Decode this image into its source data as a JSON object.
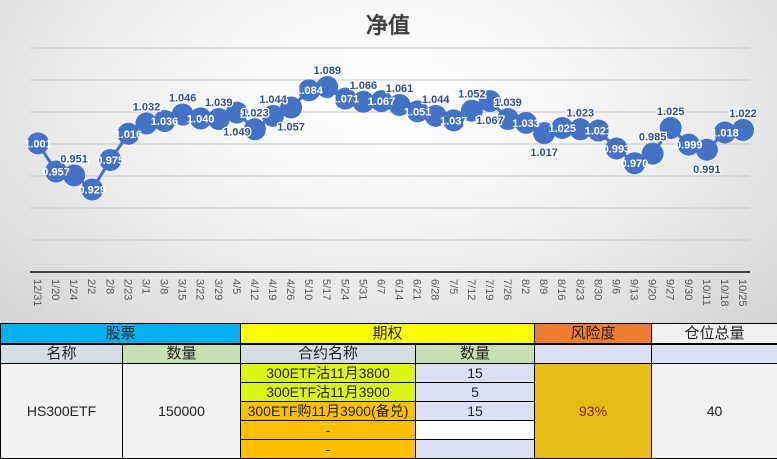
{
  "chart_data": {
    "type": "line",
    "title": "净值",
    "xlabel": "",
    "ylabel": "",
    "ylim": [
      0.8,
      1.15
    ],
    "grid": true,
    "legend": "none",
    "categories": [
      "12/31",
      "1/20",
      "1/24",
      "2/2",
      "2/8",
      "2/23",
      "3/1",
      "3/8",
      "3/15",
      "3/22",
      "3/29",
      "4/5",
      "4/12",
      "4/19",
      "4/26",
      "5/10",
      "5/17",
      "5/24",
      "5/31",
      "6/7",
      "6/14",
      "6/21",
      "6/28",
      "7/5",
      "7/12",
      "7/19",
      "7/26",
      "8/2",
      "8/9",
      "8/16",
      "8/23",
      "8/30",
      "9/6",
      "9/13",
      "9/20",
      "9/27",
      "9/30",
      "10/11",
      "10/18",
      "10/25"
    ],
    "values": [
      1.001,
      0.957,
      0.951,
      0.929,
      0.975,
      1.016,
      1.032,
      1.036,
      1.046,
      1.04,
      1.039,
      1.049,
      1.023,
      1.044,
      1.057,
      1.084,
      1.089,
      1.071,
      1.066,
      1.067,
      1.061,
      1.051,
      1.044,
      1.037,
      1.052,
      1.067,
      1.039,
      1.033,
      1.017,
      1.025,
      1.023,
      1.021,
      0.993,
      0.97,
      0.985,
      1.025,
      0.999,
      0.991,
      1.018,
      1.022
    ],
    "series_color": "#4472c4"
  },
  "table": {
    "group_headers": {
      "stock": "股票",
      "option": "期权",
      "risk": "风险度",
      "position": "仓位总量"
    },
    "sub_headers": {
      "stock_name": "名称",
      "stock_qty": "数量",
      "contract_name": "合约名称",
      "option_qty": "数量"
    },
    "stock": {
      "name": "HS300ETF",
      "qty": "150000"
    },
    "options": [
      {
        "name": "300ETF沽11月3800",
        "qty": "15"
      },
      {
        "name": "300ETF沽11月3900",
        "qty": "5"
      },
      {
        "name": "300ETF购11月3900(备兑)",
        "qty": "15"
      },
      {
        "name": "-",
        "qty": ""
      },
      {
        "name": "-",
        "qty": ""
      }
    ],
    "risk": "93%",
    "position": "40"
  },
  "colors": {
    "stock": "#00b0f0",
    "option": "#ffff00",
    "risk": "#ed7d31",
    "risk_cell": "#e9bc14",
    "put": "#dcf514",
    "call": "#ffc000",
    "qty": "#d9e1f2",
    "green": "#c6e0b4"
  }
}
